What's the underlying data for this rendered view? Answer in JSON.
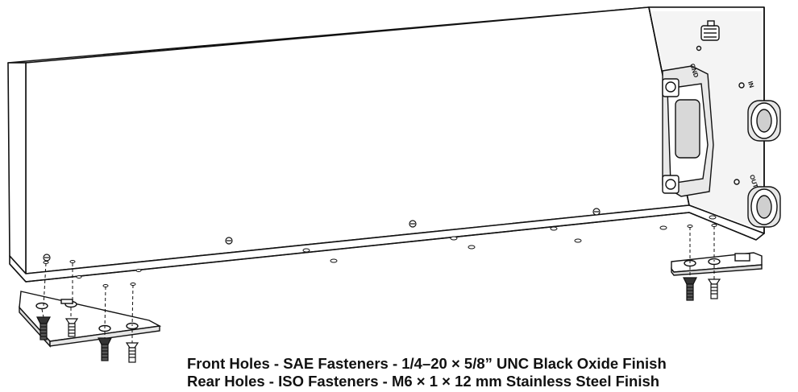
{
  "drawing": {
    "port_labels": {
      "gnd": "GND",
      "in": "IN",
      "out": "OUT"
    }
  },
  "caption": {
    "front_holes": "Front Holes - SAE Fasteners - 1/4–20 × 5/8” UNC Black Oxide Finish",
    "rear_holes": "Rear Holes - ISO Fasteners - M6 × 1 × 12 mm Stainless Steel Finish"
  }
}
